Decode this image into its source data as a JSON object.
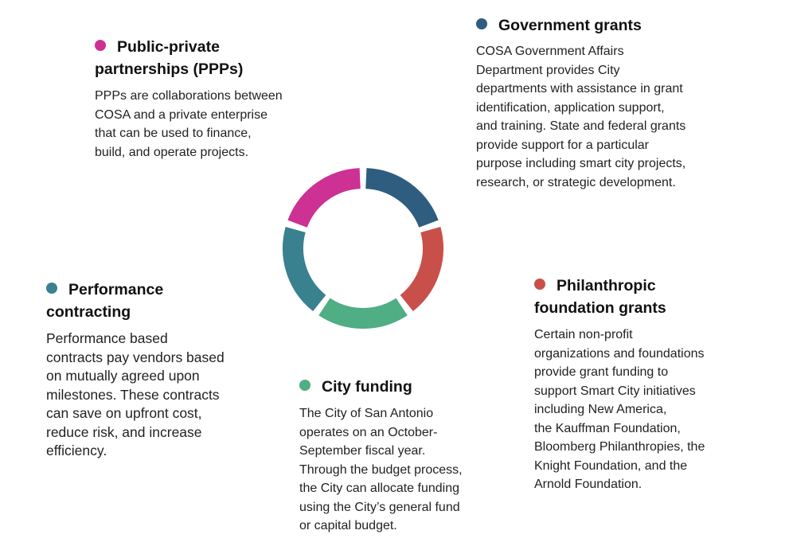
{
  "colors": {
    "government": "#2e5d7f",
    "philanthropic": "#c9504a",
    "city": "#4fae83",
    "performance": "#39818f",
    "ppp": "#cc3193"
  },
  "sections": {
    "ppp": {
      "title_lines": [
        "Public-private",
        "partnerships (PPPs)"
      ],
      "body_lines": [
        "PPPs are collaborations between",
        "COSA and a private enterprise",
        "that can be used to finance,",
        "build, and operate projects."
      ]
    },
    "government": {
      "title_lines": [
        "Government grants"
      ],
      "body_lines": [
        "COSA Government Affairs",
        "Department provides City",
        "departments with assistance in grant",
        "identification, application support,",
        "and training. State and federal grants",
        "provide support for a particular",
        "purpose including smart city projects,",
        "research, or strategic development."
      ]
    },
    "performance": {
      "title_lines": [
        "Performance",
        "contracting"
      ],
      "body_lines": [
        "Performance based",
        "contracts pay vendors based",
        "on mutually agreed upon",
        "milestones. These contracts",
        "can save on upfront cost,",
        "reduce risk, and increase",
        "efficiency."
      ]
    },
    "philanthropic": {
      "title_lines": [
        "Philanthropic",
        "foundation grants"
      ],
      "body_lines": [
        "Certain non-profit",
        "organizations and foundations",
        "provide grant funding to",
        "support Smart City initiatives",
        "including New America,",
        "the Kauffman Foundation,",
        "Bloomberg Philanthropies, the",
        "Knight Foundation, and the",
        "Arnold Foundation."
      ]
    },
    "city": {
      "title_lines": [
        "City funding"
      ],
      "body_lines": [
        "The City of San Antonio",
        "operates on an October-",
        "September fiscal year.",
        "Through the budget process,",
        "the City can allocate funding",
        "using the City’s general fund",
        "or capital budget."
      ]
    }
  }
}
